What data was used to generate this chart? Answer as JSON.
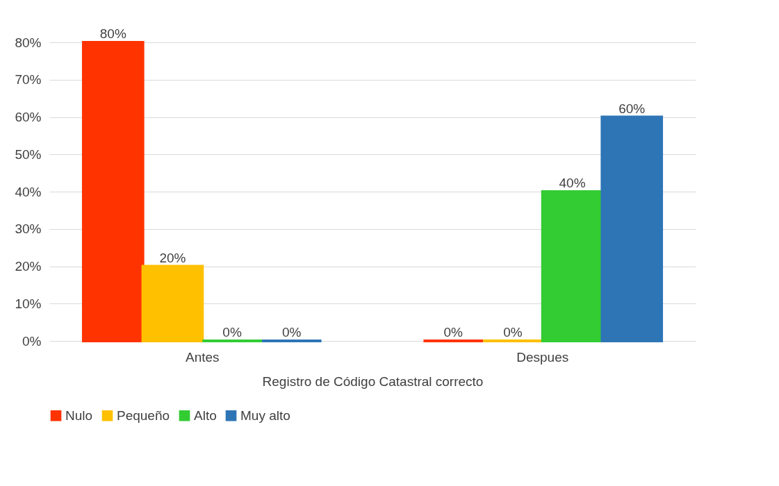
{
  "chart_data": {
    "type": "bar",
    "categories": [
      "Antes",
      "Despues"
    ],
    "xlabel": "Registro de Código Catastral correcto",
    "series": [
      {
        "name": "Nulo",
        "color": "#ff3300",
        "values": [
          80,
          0
        ],
        "value_labels": [
          "80%",
          "0%"
        ]
      },
      {
        "name": "Pequeño",
        "color": "#ffc000",
        "values": [
          20,
          0
        ],
        "value_labels": [
          "20%",
          "0%"
        ]
      },
      {
        "name": "Alto",
        "color": "#33cc33",
        "values": [
          0,
          40
        ],
        "value_labels": [
          "0%",
          "40%"
        ]
      },
      {
        "name": "Muy alto",
        "color": "#2e75b6",
        "values": [
          0,
          60
        ],
        "value_labels": [
          "0%",
          "60%"
        ]
      }
    ],
    "ylim": [
      0,
      80
    ],
    "yticks": [
      {
        "value": 0,
        "label": "0%"
      },
      {
        "value": 10,
        "label": "10%"
      },
      {
        "value": 20,
        "label": "20%"
      },
      {
        "value": 30,
        "label": "30%"
      },
      {
        "value": 40,
        "label": "40%"
      },
      {
        "value": 50,
        "label": "50%"
      },
      {
        "value": 60,
        "label": "60%"
      },
      {
        "value": 70,
        "label": "70%"
      },
      {
        "value": 80,
        "label": "80%"
      }
    ],
    "grid": "y",
    "legend": "bottom"
  }
}
